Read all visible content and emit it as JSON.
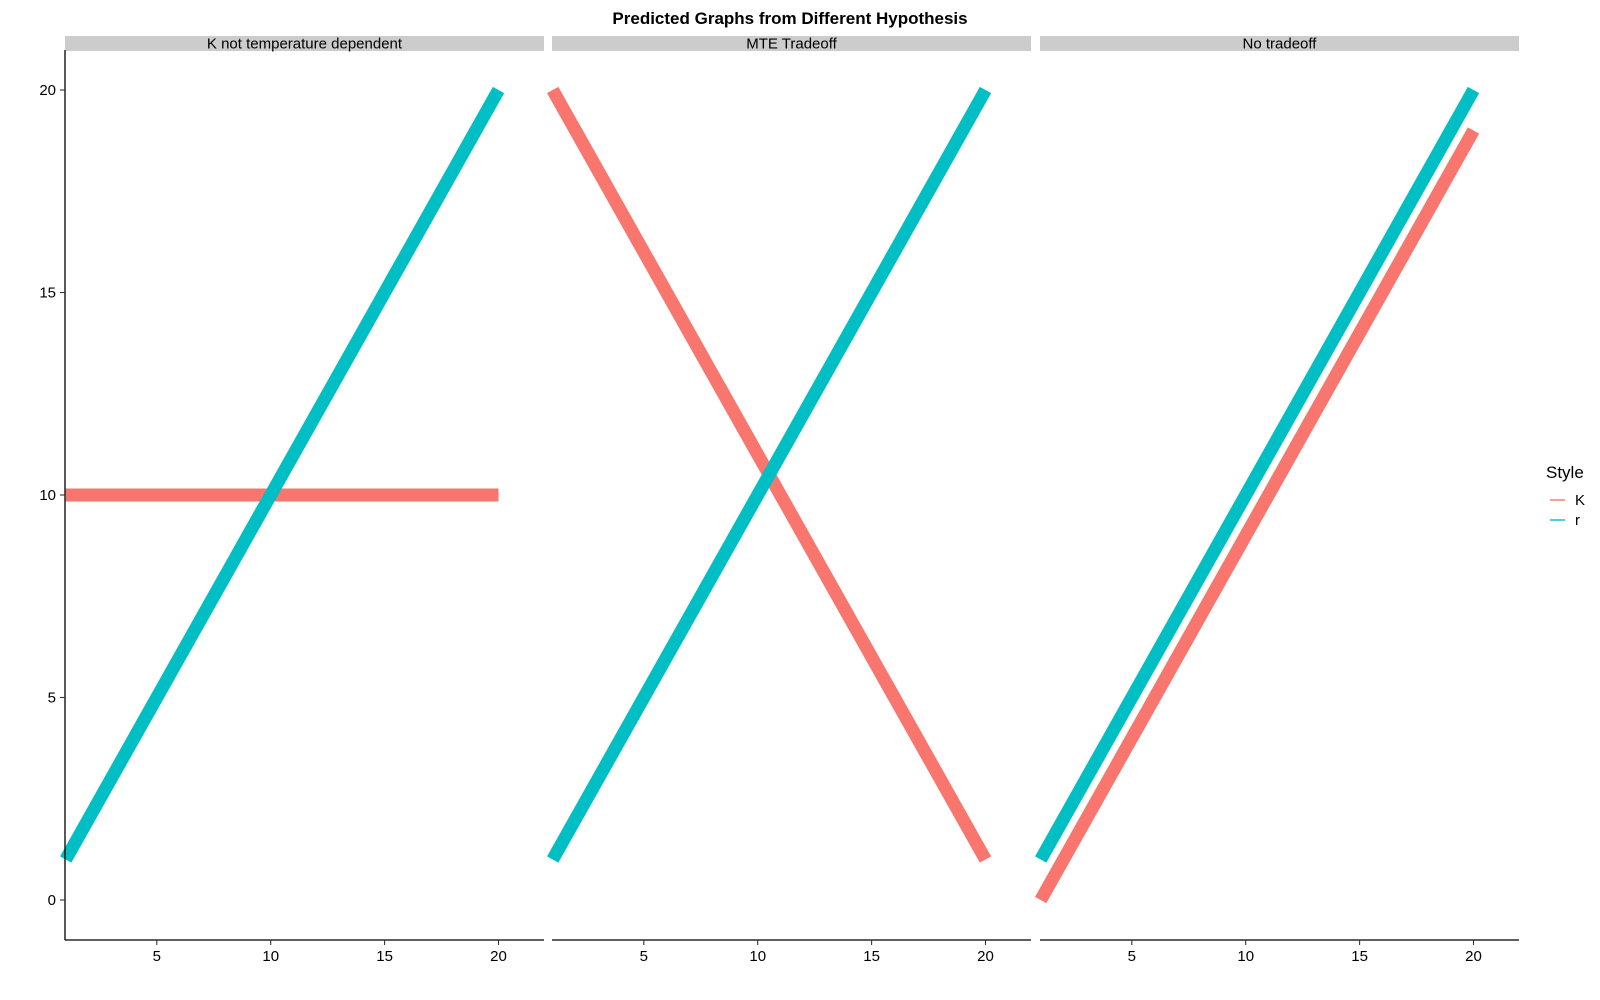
{
  "chart_data": {
    "type": "line",
    "title": "Predicted Graphs from Different Hypothesis",
    "xlabel": "",
    "ylabel": "",
    "xlim": [
      0,
      21
    ],
    "ylim": [
      -1,
      21
    ],
    "x_ticks": [
      5,
      10,
      15,
      20
    ],
    "y_ticks": [
      0,
      5,
      10,
      15,
      20
    ],
    "grid": false,
    "legend": {
      "title": "Style",
      "position": "right",
      "entries": [
        {
          "label": "K",
          "color": "#F8766D"
        },
        {
          "label": "r",
          "color": "#00BFC4"
        }
      ]
    },
    "panels": [
      {
        "label": "K not temperature dependent",
        "series": [
          {
            "name": "K",
            "color": "#F8766D",
            "x": [
              1,
              20
            ],
            "y": [
              10,
              10
            ]
          },
          {
            "name": "r",
            "color": "#00BFC4",
            "x": [
              1,
              20
            ],
            "y": [
              1,
              20
            ]
          }
        ]
      },
      {
        "label": "MTE Tradeoff",
        "series": [
          {
            "name": "K",
            "color": "#F8766D",
            "x": [
              1,
              20
            ],
            "y": [
              20,
              1
            ]
          },
          {
            "name": "r",
            "color": "#00BFC4",
            "x": [
              1,
              20
            ],
            "y": [
              1,
              20
            ]
          }
        ]
      },
      {
        "label": "No tradeoff",
        "series": [
          {
            "name": "K",
            "color": "#F8766D",
            "x": [
              1,
              20
            ],
            "y": [
              0,
              19
            ]
          },
          {
            "name": "r",
            "color": "#00BFC4",
            "x": [
              1,
              20
            ],
            "y": [
              1,
              20
            ]
          }
        ]
      }
    ]
  }
}
